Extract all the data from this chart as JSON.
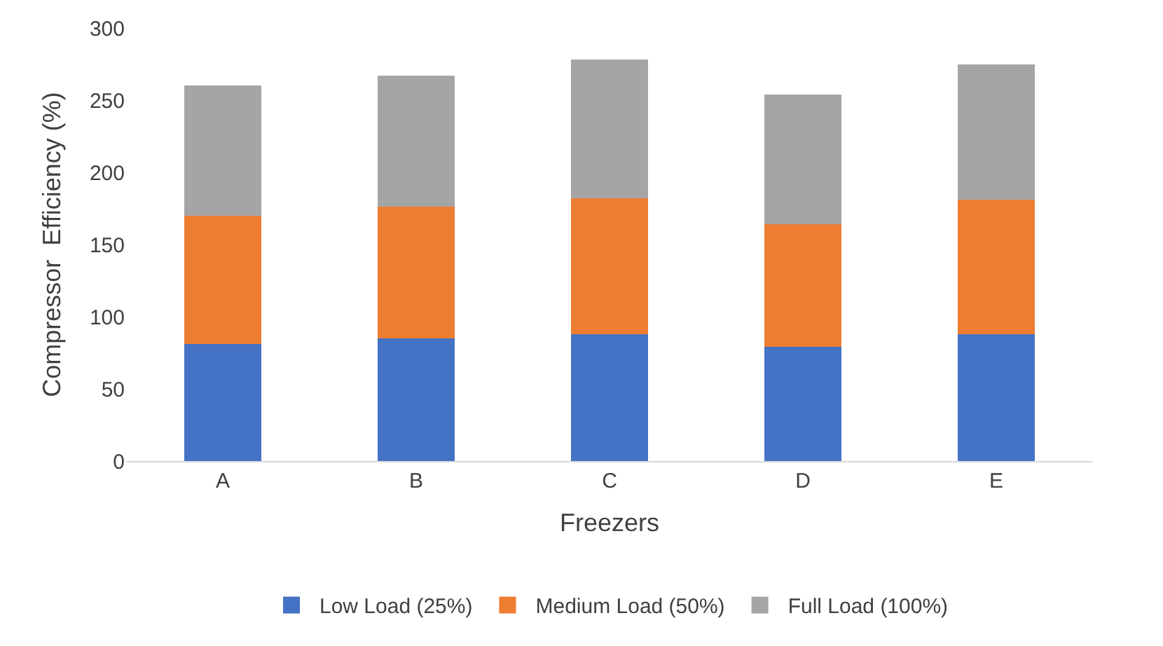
{
  "chart_data": {
    "type": "bar",
    "stacked": true,
    "xlabel": "Freezers",
    "ylabel": "Compressor  Efficiency (%)",
    "categories": [
      "A",
      "B",
      "C",
      "D",
      "E"
    ],
    "series": [
      {
        "name": "Low Load (25%)",
        "color": "#4472c4",
        "values": [
          81,
          85,
          88,
          79,
          88
        ]
      },
      {
        "name": "Medium Load (50%)",
        "color": "#ed7d31",
        "values": [
          89,
          91,
          94,
          85,
          93
        ]
      },
      {
        "name": "Full Load (100%)",
        "color": "#a5a5a5",
        "values": [
          90,
          91,
          96,
          90,
          94
        ]
      }
    ],
    "ylim": [
      0,
      300
    ],
    "yticks": [
      0,
      50,
      100,
      150,
      200,
      250,
      300
    ],
    "legend": "bottom"
  }
}
